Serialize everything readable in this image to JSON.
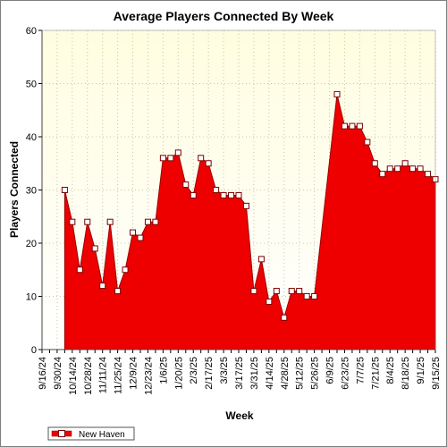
{
  "chart_data": {
    "type": "area",
    "title": "Average Players Connected By Week",
    "xlabel": "Week",
    "ylabel": "Players Connected",
    "ylim": [
      0,
      60
    ],
    "yticks": [
      0,
      10,
      20,
      30,
      40,
      50,
      60
    ],
    "grid": true,
    "legend_position": "bottom-left",
    "colors": {
      "area": "#ee0000",
      "plot_bg_top": "#fffde0",
      "plot_bg_bottom": "#ffffff",
      "grid": "#c8c8a0",
      "marker_fill": "#ffffff",
      "marker_stroke": "#7a0000"
    },
    "categories": [
      "9/16/24",
      "9/23/24",
      "9/30/24",
      "10/7/24",
      "10/14/24",
      "10/21/24",
      "10/28/24",
      "11/4/24",
      "11/11/24",
      "11/18/24",
      "11/25/24",
      "12/2/24",
      "12/9/24",
      "12/16/24",
      "12/23/24",
      "12/30/24",
      "1/6/25",
      "1/13/25",
      "1/20/25",
      "1/27/25",
      "2/3/25",
      "2/10/25",
      "2/17/25",
      "2/24/25",
      "3/3/25",
      "3/10/25",
      "3/17/25",
      "3/24/25",
      "3/31/25",
      "4/7/25",
      "4/14/25",
      "4/21/25",
      "4/28/25",
      "5/5/25",
      "5/12/25",
      "5/19/25",
      "5/26/25",
      "6/2/25",
      "6/9/25",
      "6/16/25",
      "6/23/25",
      "6/30/25",
      "7/7/25",
      "7/14/25",
      "7/21/25",
      "7/28/25",
      "8/4/25",
      "8/11/25",
      "8/18/25",
      "8/25/25",
      "9/1/25",
      "9/8/25",
      "9/15/25"
    ],
    "tick_labels": [
      "9/16/24",
      "9/30/24",
      "10/14/24",
      "10/28/24",
      "11/11/24",
      "11/25/24",
      "12/9/24",
      "12/23/24",
      "1/6/25",
      "1/20/25",
      "2/3/25",
      "2/17/25",
      "3/3/25",
      "3/17/25",
      "3/31/25",
      "4/14/25",
      "4/28/25",
      "5/12/25",
      "5/26/25",
      "6/9/25",
      "6/23/25",
      "7/7/25",
      "7/21/25",
      "8/4/25",
      "8/18/25",
      "9/1/25",
      "9/15/25"
    ],
    "series": [
      {
        "name": "New Haven",
        "values": [
          null,
          null,
          null,
          30,
          24,
          15,
          24,
          19,
          12,
          24,
          11,
          15,
          22,
          21,
          24,
          24,
          36,
          36,
          37,
          31,
          29,
          36,
          35,
          30,
          29,
          29,
          29,
          27,
          11,
          17,
          9,
          11,
          6,
          11,
          11,
          10,
          10,
          null,
          null,
          48,
          42,
          42,
          42,
          39,
          35,
          33,
          34,
          34,
          35,
          34,
          34,
          33,
          32
        ]
      }
    ]
  }
}
